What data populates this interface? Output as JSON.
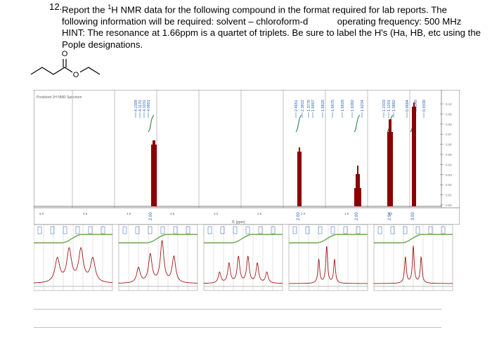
{
  "question": {
    "number": "12.",
    "text_part1": "Report the ",
    "sup": "1",
    "text_part2": "H NMR data for the following compound in the format required for lab reports. The following information will be required: solvent – chloroform-d",
    "text_part3": "operating frequency: 500 MHz HINT: The resonance at 1.66ppm is a quartet of triplets. Be sure to label the H's (Ha, HB, etc using the Pople designations."
  },
  "molecule": {
    "atom_o_top": "O",
    "atom_o_ester": "O"
  },
  "spectrum": {
    "header": "Predicted 1H NMR Spectrum",
    "x_ticks": [
      "5.0",
      "4.5",
      "4.0",
      "3.5",
      "3.0",
      "2.5",
      "2.0",
      "1.5",
      "1.0"
    ],
    "x_label": "f1 (ppm)",
    "y_ticks": [
      "0.10",
      "0.09",
      "0.08",
      "0.07",
      "0.06",
      "0.05",
      "0.04",
      "0.03",
      "0.02",
      "0.01",
      "0.00"
    ],
    "peak_label_groups": [
      {
        "labels": [
          "4.1309",
          "4.1170",
          "4.1031",
          "4.0891"
        ]
      },
      {
        "labels": [
          "2.4651",
          "2.3922",
          "1.3779"
        ]
      },
      {
        "labels": [
          "1.6957",
          "1.6820",
          "1.6675",
          "1.6528",
          "1.6382",
          "1.6234"
        ]
      },
      {
        "labels": [
          "1.2333",
          "1.1201",
          "1.0862"
        ]
      },
      {
        "labels": [
          "0.9684",
          "0.9549",
          "0.9330"
        ]
      }
    ],
    "integrals": [
      {
        "label": "2.00"
      },
      {
        "label": "2.00"
      },
      {
        "label": "2.00"
      },
      {
        "label": "2.94"
      },
      {
        "label": "3.00"
      }
    ],
    "bar_color": "#8b0000",
    "grid_color": "#9a9a9a",
    "integral_color": "#2e8b57"
  },
  "insets": {
    "count": 5,
    "line_color": "#a01818",
    "integral_color": "#6aa84f",
    "mark_color": "#2b5fb5"
  }
}
